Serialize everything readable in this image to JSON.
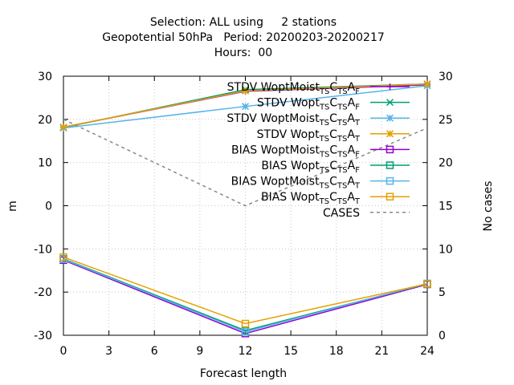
{
  "chart_data": {
    "type": "line",
    "title_lines": [
      "Selection: ALL using     2 stations",
      "Geopotential 50hPa   Period: 20200203-20200217",
      "Hours:  00"
    ],
    "xlabel": "Forecast length",
    "ylabel": "m",
    "y2label": "No cases",
    "x": [
      0,
      12,
      24
    ],
    "xlim": [
      0,
      24
    ],
    "ylim": [
      -30,
      30
    ],
    "y2lim": [
      0,
      30
    ],
    "xticks": [
      0,
      3,
      6,
      9,
      12,
      15,
      18,
      21,
      24
    ],
    "yticks": [
      -30,
      -20,
      -10,
      0,
      10,
      20,
      30
    ],
    "y2ticks": [
      0,
      5,
      10,
      15,
      20,
      25,
      30
    ],
    "grid": true,
    "legend_position": "top-right",
    "series": [
      {
        "name": "STDV WoptMoist",
        "sub1": "TS",
        "mid": "C",
        "sub2": "TS",
        "end": "A",
        "sub3": "F",
        "color": "#9400d3",
        "marker": "plus",
        "axis": "y",
        "values": [
          18.2,
          26.5,
          28.0
        ]
      },
      {
        "name": "STDV Wopt",
        "sub1": "TS",
        "mid": "C",
        "sub2": "TS",
        "end": "A",
        "sub3": "F",
        "color": "#009e73",
        "marker": "x",
        "axis": "y",
        "values": [
          18.1,
          26.9,
          28.2
        ]
      },
      {
        "name": "STDV WoptMoist",
        "sub1": "TS",
        "mid": "C",
        "sub2": "TS",
        "end": "A",
        "sub3": "T",
        "color": "#56b4e9",
        "marker": "star",
        "axis": "y",
        "values": [
          18.0,
          23.0,
          27.8
        ]
      },
      {
        "name": "STDV Wopt",
        "sub1": "TS",
        "mid": "C",
        "sub2": "TS",
        "end": "A",
        "sub3": "T",
        "color": "#e69f00",
        "marker": "star",
        "axis": "y",
        "values": [
          18.2,
          26.6,
          28.2
        ]
      },
      {
        "name": "BIAS WoptMoist",
        "sub1": "TS",
        "mid": "C",
        "sub2": "TS",
        "end": "A",
        "sub3": "F",
        "color": "#9400d3",
        "marker": "square",
        "axis": "y",
        "values": [
          -12.6,
          -29.6,
          -18.2
        ]
      },
      {
        "name": "BIAS Wopt",
        "sub1": "TS",
        "mid": "C",
        "sub2": "TS",
        "end": "A",
        "sub3": "F",
        "color": "#009e73",
        "marker": "square",
        "axis": "y",
        "values": [
          -12.3,
          -28.9,
          -18.1
        ]
      },
      {
        "name": "BIAS WoptMoist",
        "sub1": "TS",
        "mid": "C",
        "sub2": "TS",
        "end": "A",
        "sub3": "T",
        "color": "#56b4e9",
        "marker": "square",
        "axis": "y",
        "values": [
          -12.4,
          -29.2,
          -18.0
        ]
      },
      {
        "name": "BIAS Wopt",
        "sub1": "TS",
        "mid": "C",
        "sub2": "TS",
        "end": "A",
        "sub3": "T",
        "color": "#e69f00",
        "marker": "square",
        "axis": "y",
        "values": [
          -11.9,
          -27.3,
          -18.1
        ]
      },
      {
        "name": "CASES",
        "color": "#888888",
        "marker": "none",
        "dashed": true,
        "axis": "y2",
        "values": [
          25,
          15,
          24
        ]
      }
    ]
  }
}
